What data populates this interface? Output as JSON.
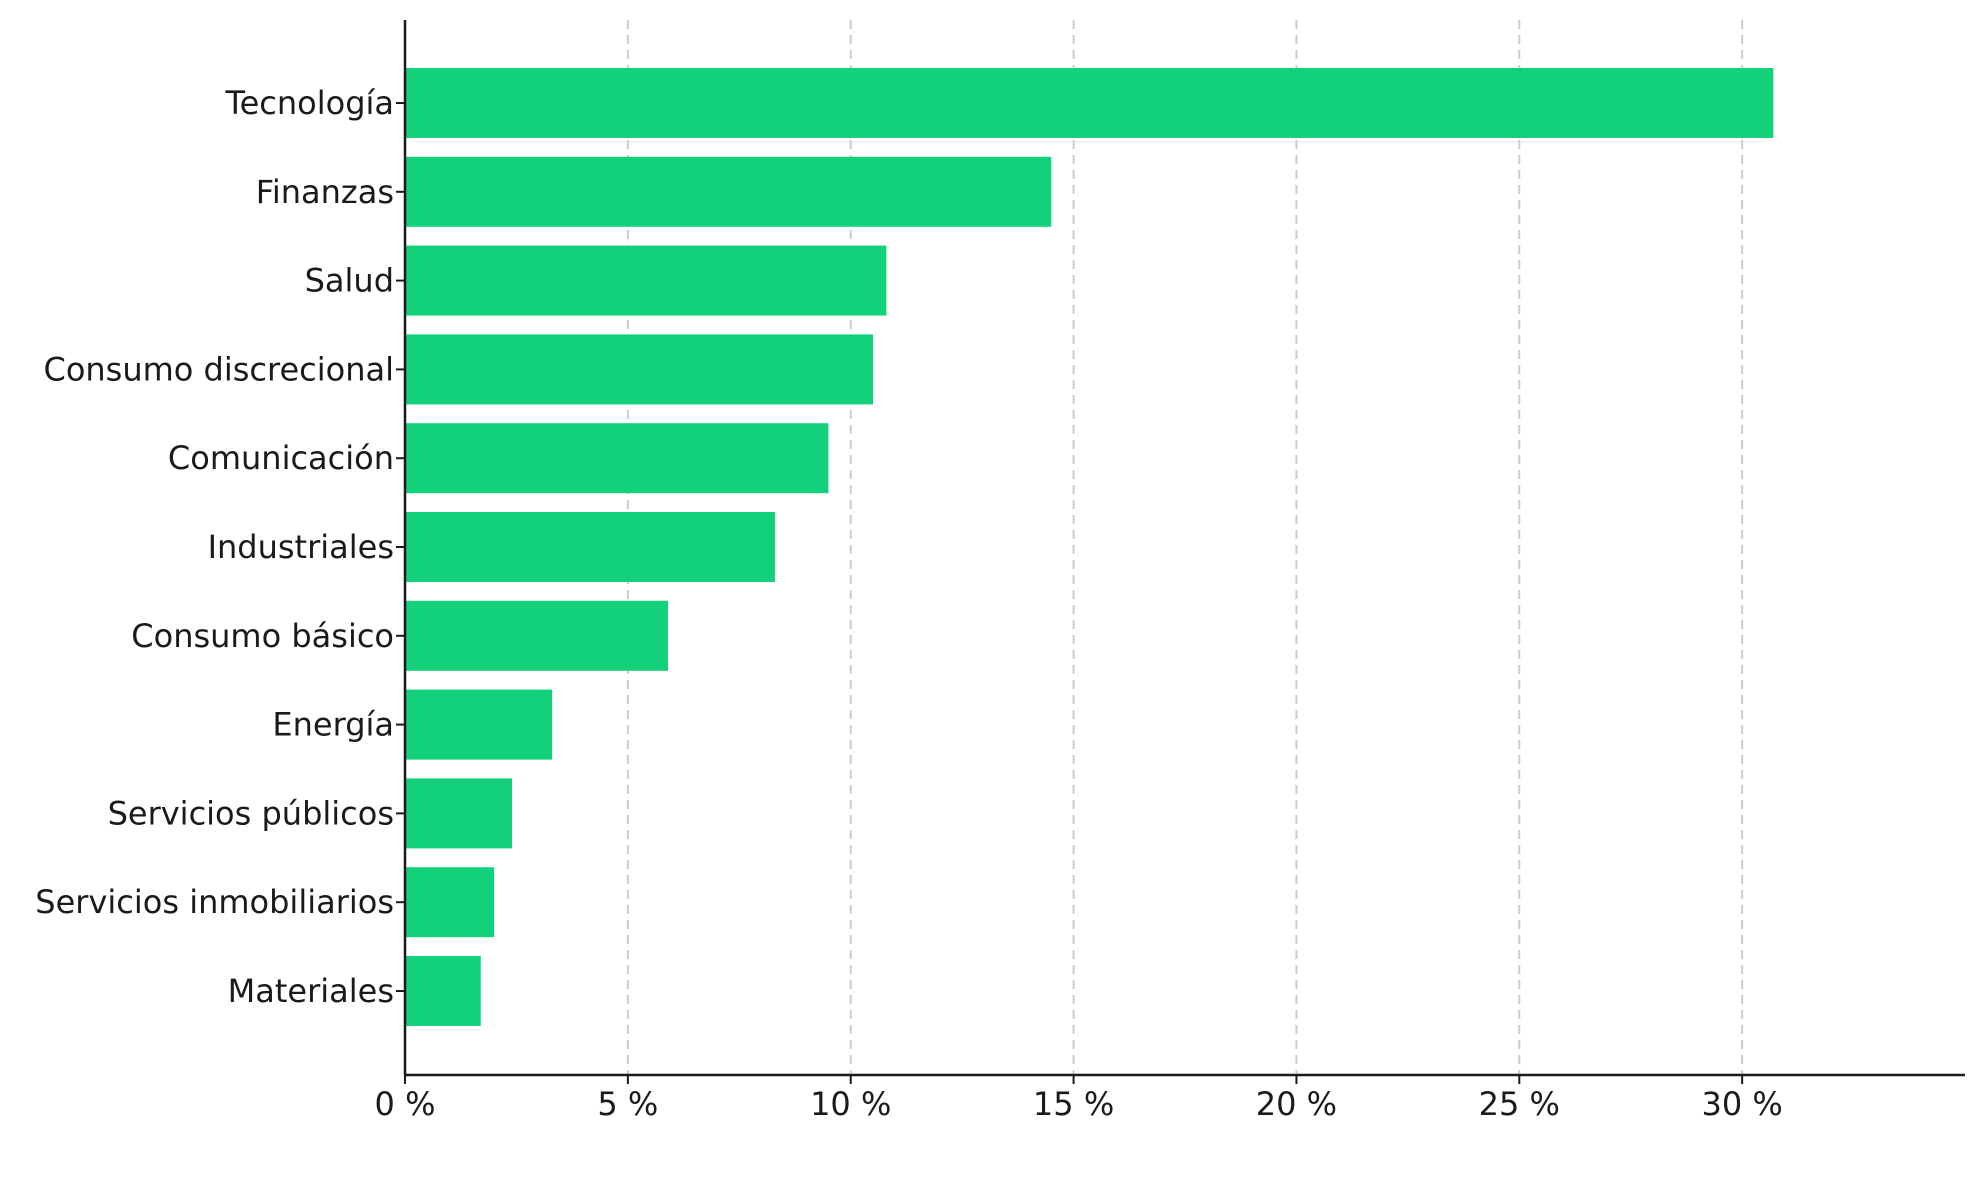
{
  "chart_data": {
    "type": "bar",
    "orientation": "horizontal",
    "categories": [
      "Tecnología",
      "Finanzas",
      "Salud",
      "Consumo discrecional",
      "Comunicación",
      "Industriales",
      "Consumo básico",
      "Energía",
      "Servicios públicos",
      "Servicios inmobiliarios",
      "Materiales"
    ],
    "values": [
      30.7,
      14.5,
      10.8,
      10.5,
      9.5,
      8.3,
      5.9,
      3.3,
      2.4,
      2.0,
      1.7
    ],
    "xlim": [
      0,
      35
    ],
    "xticks": [
      0,
      5,
      10,
      15,
      20,
      25,
      30
    ],
    "xtick_labels": [
      "0 %",
      "5 %",
      "10 %",
      "15 %",
      "20 %",
      "25 %",
      "30 %"
    ],
    "title": "",
    "xlabel": "",
    "ylabel": "",
    "grid": "vertical dashed",
    "colors": {
      "bar": "#13d17a",
      "grid": "#cccccc",
      "axis": "#1a1a1a"
    }
  }
}
